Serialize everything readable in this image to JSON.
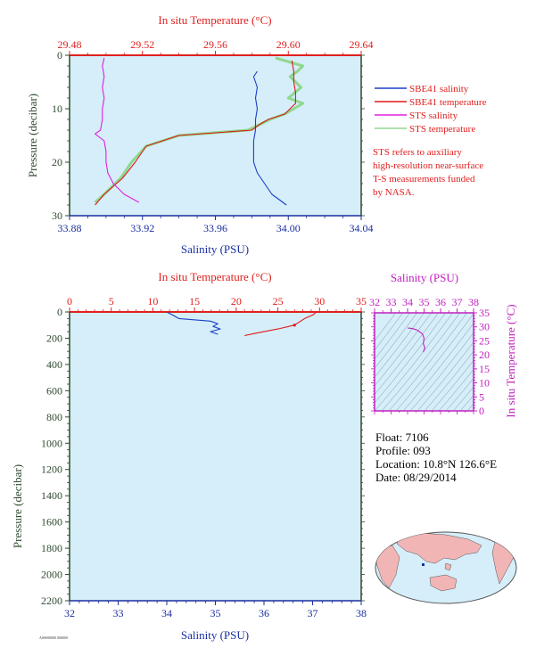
{
  "colors": {
    "panel_bg": "#d5eef9",
    "temperature_axis": "#e0201f",
    "salinity_axis": "#1a2fa0",
    "pressure_axis": "#2f4a2f",
    "sbe_salinity": "#1a3fc8",
    "sbe_temperature": "#e01818",
    "sts_salinity": "#e020e0",
    "sts_temperature": "#8fd88f",
    "ts_axis": "#c020c0"
  },
  "top_panel": {
    "top_axis_title": "In situ Temperature (°C)",
    "bottom_axis_title": "Salinity (PSU)",
    "left_axis_title": "Pressure (decibar)",
    "temp_ticks": [
      "29.48",
      "29.52",
      "29.56",
      "29.60",
      "29.64"
    ],
    "sal_ticks": [
      "33.88",
      "33.92",
      "33.96",
      "34.00",
      "34.04"
    ],
    "pres_ticks": [
      "0",
      "10",
      "20",
      "30"
    ],
    "legend": [
      {
        "label": "SBE41 salinity",
        "color": "#1a3fc8"
      },
      {
        "label": "SBE41 temperature",
        "color": "#e01818"
      },
      {
        "label": "STS salinity",
        "color": "#e020e0"
      },
      {
        "label": "STS temperature",
        "color": "#8fd88f"
      }
    ],
    "note_lines": [
      "STS refers to auxiliary",
      "high-resolution near-surface",
      "T-S measurements funded",
      "by NASA."
    ]
  },
  "bottom_panel": {
    "top_axis_title": "In situ Temperature (°C)",
    "bottom_axis_title": "Salinity (PSU)",
    "left_axis_title": "Pressure (decibar)",
    "temp_ticks": [
      "0",
      "5",
      "10",
      "15",
      "20",
      "25",
      "30",
      "35"
    ],
    "sal_ticks": [
      "32",
      "33",
      "34",
      "35",
      "36",
      "37",
      "38"
    ],
    "pres_ticks": [
      "0",
      "200",
      "400",
      "600",
      "800",
      "1000",
      "1200",
      "1400",
      "1600",
      "1800",
      "2000",
      "2200"
    ]
  },
  "ts_panel": {
    "top_axis_title": "Salinity (PSU)",
    "right_axis_title": "In situ Temperature (°C)",
    "sal_ticks": [
      "32",
      "33",
      "34",
      "35",
      "36",
      "37",
      "38"
    ],
    "temp_ticks": [
      "0",
      "5",
      "10",
      "15",
      "20",
      "25",
      "30",
      "35"
    ]
  },
  "info": {
    "float_line": "Float:  7106",
    "profile_line": "Profile:  093",
    "location_line": "Location:  10.8°N  126.6°E",
    "date_line": "Date:  08/29/2014"
  },
  "footer_code": "AS0000000 000000",
  "chart_data": [
    {
      "type": "line",
      "title": "",
      "x_top_label": "In situ Temperature (°C)",
      "xlabel": "Salinity (PSU)",
      "ylabel": "Pressure (decibar)",
      "salinity_range": [
        33.88,
        34.04
      ],
      "temperature_range": [
        29.48,
        29.64
      ],
      "pressure_range": [
        0,
        30
      ],
      "y_inverted": true,
      "grid": false,
      "legend_position": "right",
      "series": [
        {
          "name": "SBE41 salinity",
          "axis": "salinity",
          "pressure": [
            3,
            4,
            6,
            8,
            10,
            12,
            14,
            16,
            18,
            20,
            22,
            24,
            26,
            28
          ],
          "values": [
            33.983,
            33.981,
            33.983,
            33.982,
            33.983,
            33.982,
            33.982,
            33.981,
            33.981,
            33.981,
            33.983,
            33.987,
            33.991,
            33.999
          ]
        },
        {
          "name": "SBE41 temperature",
          "axis": "temperature",
          "pressure": [
            1,
            3,
            5,
            7,
            9,
            11,
            12,
            13,
            14,
            15,
            17,
            20,
            23,
            26,
            28
          ],
          "values": [
            29.602,
            29.603,
            29.603,
            29.604,
            29.604,
            29.598,
            29.589,
            29.584,
            29.58,
            29.54,
            29.522,
            29.516,
            29.509,
            29.499,
            29.494
          ]
        },
        {
          "name": "STS salinity",
          "axis": "salinity",
          "pressure": [
            0.5,
            2,
            4,
            6,
            8,
            10,
            12,
            14,
            14.7,
            16,
            18,
            20,
            22,
            24,
            26,
            27.5
          ],
          "values": [
            33.899,
            33.898,
            33.899,
            33.898,
            33.899,
            33.898,
            33.898,
            33.897,
            33.894,
            33.899,
            33.9,
            33.9,
            33.901,
            33.904,
            33.91,
            33.918
          ]
        },
        {
          "name": "STS temperature",
          "axis": "temperature",
          "pressure": [
            0.5,
            1,
            2,
            3,
            4,
            6,
            8,
            9,
            11,
            12,
            13,
            14,
            15,
            17,
            20,
            23,
            26,
            27.5
          ],
          "values": [
            29.593,
            29.598,
            29.608,
            29.605,
            29.601,
            29.607,
            29.6,
            29.608,
            29.598,
            29.59,
            29.584,
            29.578,
            29.54,
            29.522,
            29.514,
            29.508,
            29.499,
            29.494
          ]
        }
      ]
    },
    {
      "type": "line",
      "title": "",
      "x_top_label": "In situ Temperature (°C)",
      "xlabel": "Salinity (PSU)",
      "ylabel": "Pressure (decibar)",
      "salinity_range": [
        32,
        38
      ],
      "temperature_range": [
        0,
        35
      ],
      "pressure_range": [
        0,
        2200
      ],
      "y_inverted": true,
      "grid": false,
      "series": [
        {
          "name": "SBE41 salinity",
          "axis": "salinity",
          "pressure": [
            0,
            10,
            20,
            30,
            50,
            70,
            90,
            110,
            130,
            150,
            170
          ],
          "values": [
            34.0,
            34.05,
            34.1,
            34.15,
            34.25,
            34.9,
            35.05,
            34.95,
            35.1,
            34.9,
            35.05
          ]
        },
        {
          "name": "SBE41 temperature",
          "axis": "temperature",
          "pressure": [
            0,
            20,
            50,
            100,
            130,
            160,
            180
          ],
          "values": [
            29.6,
            29.3,
            28.2,
            27.0,
            25.0,
            22.5,
            21.0
          ]
        }
      ]
    },
    {
      "type": "line",
      "title": "",
      "xlabel": "Salinity (PSU)",
      "ylabel": "In situ Temperature (°C)",
      "salinity_range": [
        32,
        38
      ],
      "temperature_range": [
        0,
        35
      ],
      "series": [
        {
          "axis": "ts",
          "salinity": [
            34.0,
            34.3,
            34.6,
            34.9,
            35.0,
            34.95,
            35.05,
            34.95
          ],
          "temperature": [
            29.6,
            29.4,
            28.8,
            27.5,
            26.0,
            24.0,
            22.5,
            21.0
          ]
        }
      ]
    }
  ]
}
